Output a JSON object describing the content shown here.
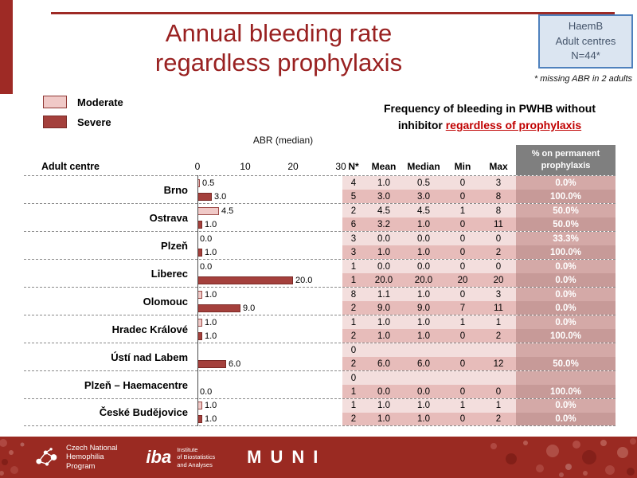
{
  "slide": {
    "title_line1": "Annual bleeding rate",
    "title_line2": "regardless prophylaxis"
  },
  "info_box": {
    "line1": "HaemB",
    "line2": "Adult centres",
    "line3": "N=44*"
  },
  "footnote": "* missing ABR in 2 adults",
  "legend": {
    "moderate": "Moderate",
    "severe": "Severe"
  },
  "subtitle": {
    "line1": "Frequency of bleeding in PWHB without",
    "line2_prefix": "inhibitor ",
    "line2_underlined": "regardless of prophylaxis"
  },
  "axis": {
    "label": "ABR (median)",
    "ticks": [
      "0",
      "10",
      "20",
      "30"
    ]
  },
  "table_header": {
    "row_header": "Adult centre",
    "n": "N*",
    "mean": "Mean",
    "median": "Median",
    "min": "Min",
    "max": "Max",
    "pct_line1": "% on permanent",
    "pct_line2": "prophylaxis"
  },
  "groups": [
    {
      "centre": "Brno",
      "moderate": {
        "bar": 0.5,
        "bar_label": "0.5",
        "n": "4",
        "mean": "1.0",
        "median": "0.5",
        "min": "0",
        "max": "3",
        "pct": "0.0%"
      },
      "severe": {
        "bar": 3.0,
        "bar_label": "3.0",
        "n": "5",
        "mean": "3.0",
        "median": "3.0",
        "min": "0",
        "max": "8",
        "pct": "100.0%"
      }
    },
    {
      "centre": "Ostrava",
      "moderate": {
        "bar": 4.5,
        "bar_label": "4.5",
        "n": "2",
        "mean": "4.5",
        "median": "4.5",
        "min": "1",
        "max": "8",
        "pct": "50.0%"
      },
      "severe": {
        "bar": 1.0,
        "bar_label": "1.0",
        "n": "6",
        "mean": "3.2",
        "median": "1.0",
        "min": "0",
        "max": "11",
        "pct": "50.0%"
      }
    },
    {
      "centre": "Plzeň",
      "moderate": {
        "bar": 0,
        "bar_label": "0.0",
        "n": "3",
        "mean": "0.0",
        "median": "0.0",
        "min": "0",
        "max": "0",
        "pct": "33.3%"
      },
      "severe": {
        "bar": 1.0,
        "bar_label": "1.0",
        "n": "3",
        "mean": "1.0",
        "median": "1.0",
        "min": "0",
        "max": "2",
        "pct": "100.0%"
      }
    },
    {
      "centre": "Liberec",
      "moderate": {
        "bar": 0,
        "bar_label": "0.0",
        "n": "1",
        "mean": "0.0",
        "median": "0.0",
        "min": "0",
        "max": "0",
        "pct": "0.0%"
      },
      "severe": {
        "bar": 20.0,
        "bar_label": "20.0",
        "n": "1",
        "mean": "20.0",
        "median": "20.0",
        "min": "20",
        "max": "20",
        "pct": "0.0%"
      }
    },
    {
      "centre": "Olomouc",
      "moderate": {
        "bar": 1.0,
        "bar_label": "1.0",
        "n": "8",
        "mean": "1.1",
        "median": "1.0",
        "min": "0",
        "max": "3",
        "pct": "0.0%"
      },
      "severe": {
        "bar": 9.0,
        "bar_label": "9.0",
        "n": "2",
        "mean": "9.0",
        "median": "9.0",
        "min": "7",
        "max": "11",
        "pct": "0.0%"
      }
    },
    {
      "centre": "Hradec Králové",
      "moderate": {
        "bar": 1.0,
        "bar_label": "1.0",
        "n": "1",
        "mean": "1.0",
        "median": "1.0",
        "min": "1",
        "max": "1",
        "pct": "0.0%"
      },
      "severe": {
        "bar": 1.0,
        "bar_label": "1.0",
        "n": "2",
        "mean": "1.0",
        "median": "1.0",
        "min": "0",
        "max": "2",
        "pct": "100.0%"
      }
    },
    {
      "centre": "Ústí nad Labem",
      "moderate": {
        "bar": null,
        "bar_label": "",
        "n": "0",
        "mean": "",
        "median": "",
        "min": "",
        "max": "",
        "pct": ""
      },
      "severe": {
        "bar": 6.0,
        "bar_label": "6.0",
        "n": "2",
        "mean": "6.0",
        "median": "6.0",
        "min": "0",
        "max": "12",
        "pct": "50.0%"
      }
    },
    {
      "centre": "Plzeň – Haemacentre",
      "moderate": {
        "bar": null,
        "bar_label": "",
        "n": "0",
        "mean": "",
        "median": "",
        "min": "",
        "max": "",
        "pct": ""
      },
      "severe": {
        "bar": 0,
        "bar_label": "0.0",
        "n": "1",
        "mean": "0.0",
        "median": "0.0",
        "min": "0",
        "max": "0",
        "pct": "100.0%"
      }
    },
    {
      "centre": "České Budějovice",
      "moderate": {
        "bar": 1.0,
        "bar_label": "1.0",
        "n": "1",
        "mean": "1.0",
        "median": "1.0",
        "min": "1",
        "max": "1",
        "pct": "0.0%"
      },
      "severe": {
        "bar": 1.0,
        "bar_label": "1.0",
        "n": "2",
        "mean": "1.0",
        "median": "1.0",
        "min": "0",
        "max": "2",
        "pct": "0.0%"
      }
    }
  ],
  "chart_data": {
    "type": "bar",
    "orientation": "horizontal",
    "title": "Annual bleeding rate regardless prophylaxis",
    "subtitle": "Frequency of bleeding in PWHB without inhibitor regardless of prophylaxis",
    "xlabel": "ABR (median)",
    "xlim": [
      0,
      30
    ],
    "xticks": [
      0,
      10,
      20,
      30
    ],
    "categories": [
      "Brno",
      "Ostrava",
      "Plzeň",
      "Liberec",
      "Olomouc",
      "Hradec Králové",
      "Ústí nad Labem",
      "Plzeň – Haemacentre",
      "České Budějovice"
    ],
    "series": [
      {
        "name": "Moderate",
        "color": "#f0c9c7",
        "values": [
          0.5,
          4.5,
          0.0,
          0.0,
          1.0,
          1.0,
          null,
          null,
          1.0
        ]
      },
      {
        "name": "Severe",
        "color": "#a4403c",
        "values": [
          3.0,
          1.0,
          1.0,
          20.0,
          9.0,
          1.0,
          6.0,
          0.0,
          1.0
        ]
      }
    ],
    "legend_position": "top-left",
    "grid": false
  },
  "footer": {
    "cnhp_line1": "Czech National",
    "cnhp_line2": "Hemophilia",
    "cnhp_line3": "Program",
    "iba_mark": "iba",
    "iba_sub1": "Institute",
    "iba_sub2": "of Biostatistics",
    "iba_sub3": "and Analyses",
    "muni": "MUNI"
  }
}
